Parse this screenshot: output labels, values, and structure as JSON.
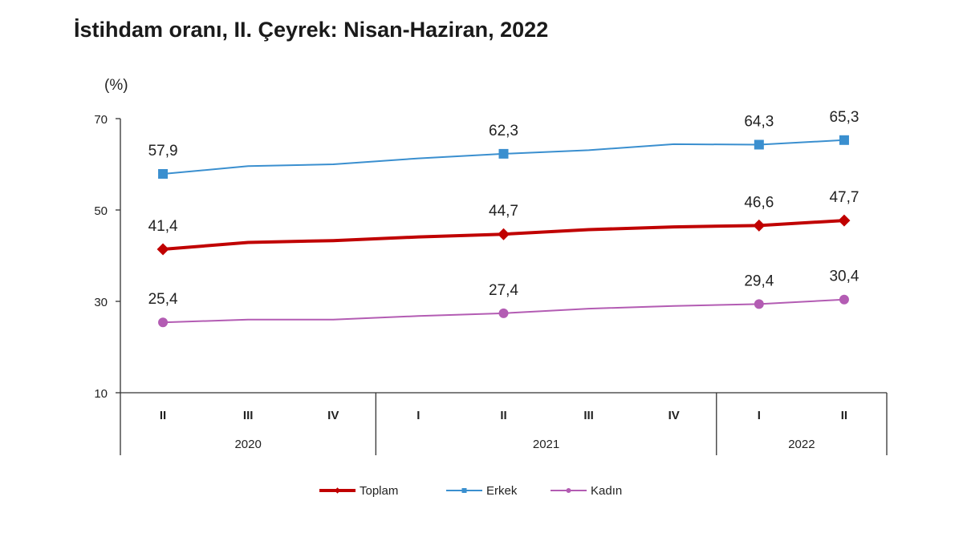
{
  "chart_data": {
    "type": "line",
    "title": "İstihdam oranı, II. Çeyrek: Nisan-Haziran, 2022",
    "ylabel": "(%)",
    "ylim": [
      10,
      70
    ],
    "yticks": [
      "10",
      "30",
      "50",
      "70"
    ],
    "quarters": [
      "II",
      "III",
      "IV",
      "I",
      "II",
      "III",
      "IV",
      "I",
      "II"
    ],
    "years": [
      "2020",
      "2021",
      "2022"
    ],
    "series": [
      {
        "name": "Toplam",
        "color": "#c00000",
        "marker": "diamond",
        "values": [
          41.4,
          42.9,
          43.3,
          44.1,
          44.7,
          45.7,
          46.3,
          46.6,
          47.7
        ],
        "labels": [
          "41,4",
          "",
          "",
          "",
          "44,7",
          "",
          "",
          "46,6",
          "47,7"
        ]
      },
      {
        "name": "Erkek",
        "color": "#3a8fcf",
        "marker": "square",
        "values": [
          57.9,
          59.6,
          60.0,
          61.3,
          62.3,
          63.1,
          64.4,
          64.3,
          65.3
        ],
        "labels": [
          "57,9",
          "",
          "",
          "",
          "62,3",
          "",
          "",
          "64,3",
          "65,3"
        ]
      },
      {
        "name": "Kadın",
        "color": "#b35cb3",
        "marker": "circle",
        "values": [
          25.4,
          26.0,
          26.0,
          26.8,
          27.4,
          28.4,
          29.0,
          29.4,
          30.4
        ],
        "labels": [
          "25,4",
          "",
          "",
          "",
          "27,4",
          "",
          "",
          "29,4",
          "30,4"
        ]
      }
    ],
    "legend_position": "bottom"
  }
}
